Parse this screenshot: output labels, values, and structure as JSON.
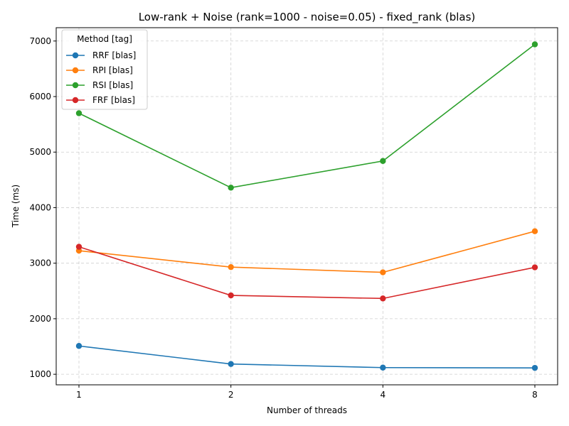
{
  "chart_data": {
    "type": "line",
    "title": "Low-rank + Noise (rank=1000 - noise=0.05) - fixed_rank (blas)",
    "xlabel": "Number of threads",
    "ylabel": "Time (ms)",
    "categories": [
      "1",
      "2",
      "4",
      "8"
    ],
    "y_ticks": [
      1000,
      2000,
      3000,
      4000,
      5000,
      6000,
      7000
    ],
    "ylim": [
      810,
      7240
    ],
    "grid": true,
    "legend_title": "Method [tag]",
    "legend_position": "upper-left",
    "series": [
      {
        "name": "RRF [blas]",
        "color": "#1f77b4",
        "values": [
          1510,
          1185,
          1120,
          1115
        ]
      },
      {
        "name": "RPI [blas]",
        "color": "#ff7f0e",
        "values": [
          3225,
          2930,
          2835,
          3575
        ]
      },
      {
        "name": "RSI [blas]",
        "color": "#2ca02c",
        "values": [
          5700,
          4360,
          4840,
          6940
        ]
      },
      {
        "name": "FRF [blas]",
        "color": "#d62728",
        "values": [
          3295,
          2420,
          2365,
          2925
        ]
      }
    ]
  }
}
